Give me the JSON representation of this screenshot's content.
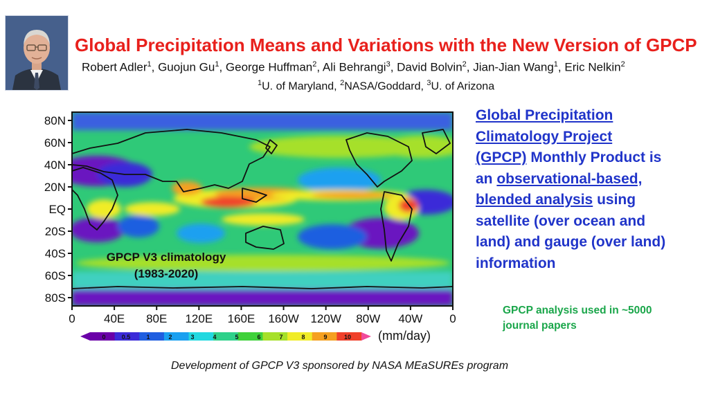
{
  "header": {
    "title": "Global Precipitation Means and Variations with the New Version of GPCP",
    "authors": [
      {
        "name": "Robert Adler",
        "aff": "1"
      },
      {
        "name": "Guojun Gu",
        "aff": "1"
      },
      {
        "name": "George Huffman",
        "aff": "2"
      },
      {
        "name": "Ali Behrangi",
        "aff": "3"
      },
      {
        "name": "David Bolvin",
        "aff": "2"
      },
      {
        "name": "Jian-Jian Wang",
        "aff": "1"
      },
      {
        "name": "Eric Nelkin",
        "aff": "2"
      }
    ],
    "affiliations": [
      {
        "num": "1",
        "name": "U. of Maryland"
      },
      {
        "num": "2",
        "name": "NASA/Goddard"
      },
      {
        "num": "3",
        "name": "U. of Arizona"
      }
    ]
  },
  "map": {
    "lat_labels": [
      "80N",
      "60N",
      "40N",
      "20N",
      "EQ",
      "20S",
      "40S",
      "60S",
      "80S"
    ],
    "lon_labels": [
      "0",
      "40E",
      "80E",
      "120E",
      "160E",
      "160W",
      "120W",
      "80W",
      "40W",
      "0"
    ],
    "overlay_line1": "GPCP V3 climatology",
    "overlay_line2": "(1983-2020)",
    "colorbar_ticks": [
      "0",
      "0.5",
      "1",
      "2",
      "3",
      "4",
      "5",
      "6",
      "7",
      "8",
      "9",
      "10"
    ],
    "colorbar_unit": "(mm/day)",
    "colorbar_colors": [
      "#6a00a8",
      "#3b2bd8",
      "#1f5ee0",
      "#1aa0f0",
      "#22d8e0",
      "#2ed18a",
      "#3fd13a",
      "#a6e02a",
      "#f0ec28",
      "#f5a020",
      "#f0402a",
      "#f04a9a"
    ]
  },
  "side_panel": {
    "link1": "Global Precipitation Climatology Project (GPCP)",
    "text1": " Monthly Product is an ",
    "link2": "observational-based, blended analysis",
    "text2": " using satellite (over ocean and land) and gauge (over land) information",
    "note": "GPCP analysis used in ~5000 journal papers"
  },
  "footer": {
    "sponsor": "Development of GPCP V3 sponsored by NASA MEaSUREs program"
  }
}
